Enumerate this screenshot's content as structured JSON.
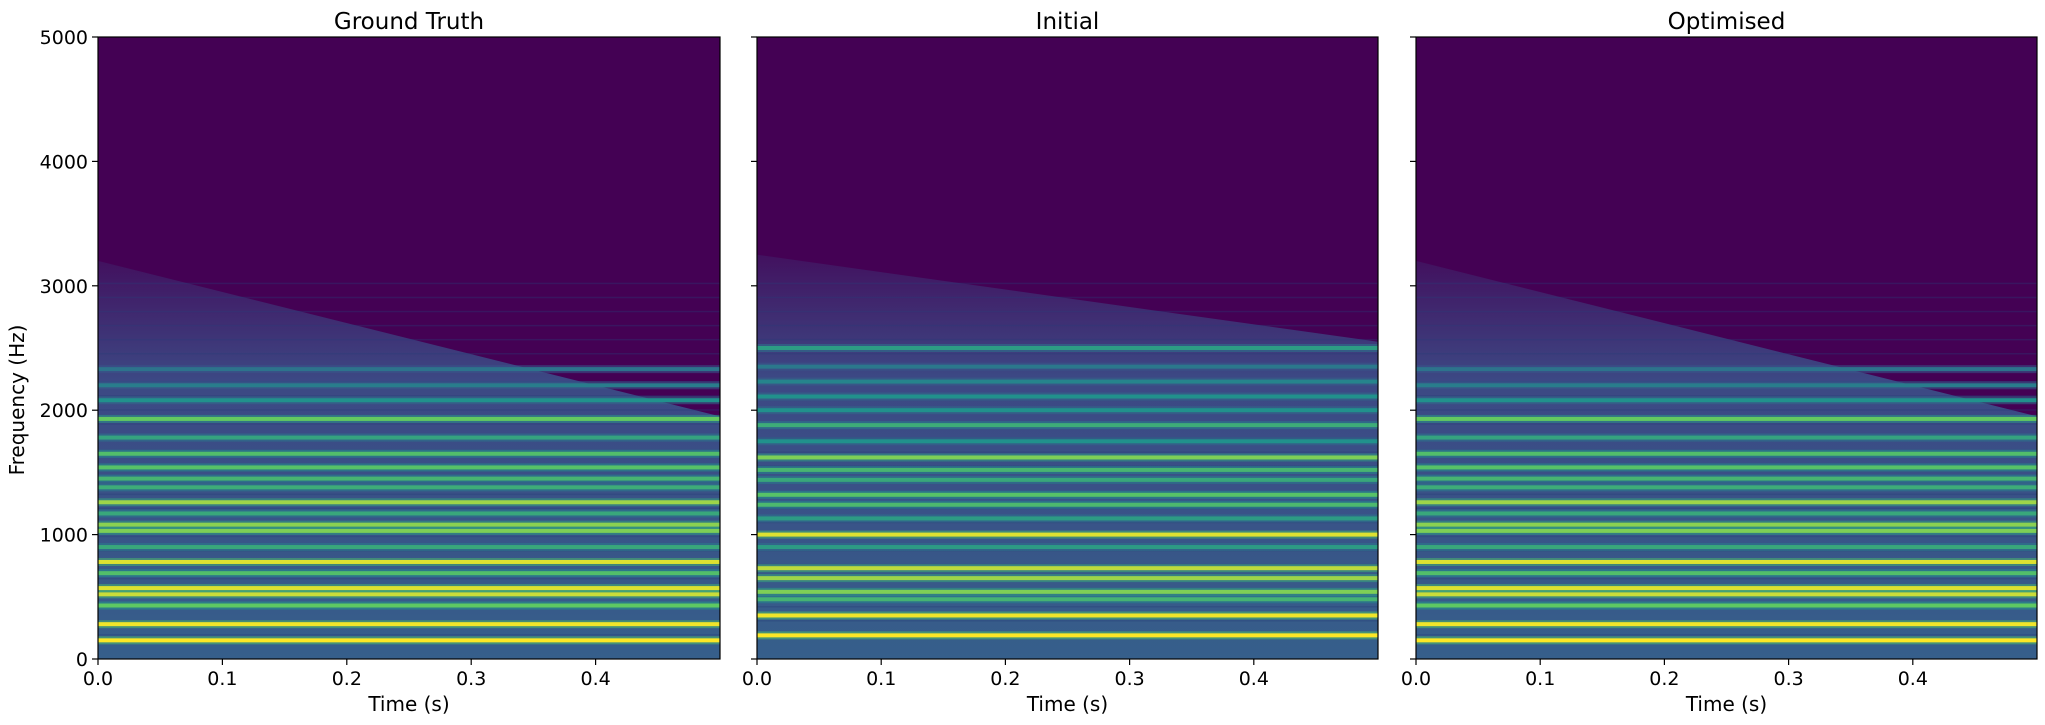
{
  "figure": {
    "shared_ylabel": "Frequency (Hz)"
  },
  "chart_data": [
    {
      "type": "heatmap",
      "title": "Ground Truth",
      "xlabel": "Time (s)",
      "ylabel": "Frequency (Hz)",
      "xlim": [
        0.0,
        0.5
      ],
      "ylim": [
        0,
        5000
      ],
      "x_ticks": [
        "0.0",
        "0.1",
        "0.2",
        "0.3",
        "0.4"
      ],
      "y_ticks": [
        "0",
        "1000",
        "2000",
        "3000",
        "4000",
        "5000"
      ],
      "colormap": "viridis",
      "background_color": "#440154",
      "noise_floor_start_hz": 3200,
      "noise_floor_end_hz": 1950,
      "harmonics": [
        {
          "freq": 150,
          "level": 1.0
        },
        {
          "freq": 280,
          "level": 0.98
        },
        {
          "freq": 430,
          "level": 0.75
        },
        {
          "freq": 520,
          "level": 0.92
        },
        {
          "freq": 570,
          "level": 0.95
        },
        {
          "freq": 690,
          "level": 0.7
        },
        {
          "freq": 780,
          "level": 0.95
        },
        {
          "freq": 900,
          "level": 0.6
        },
        {
          "freq": 1030,
          "level": 0.8
        },
        {
          "freq": 1080,
          "level": 0.82
        },
        {
          "freq": 1170,
          "level": 0.6
        },
        {
          "freq": 1260,
          "level": 0.85
        },
        {
          "freq": 1380,
          "level": 0.62
        },
        {
          "freq": 1450,
          "level": 0.66
        },
        {
          "freq": 1540,
          "level": 0.72
        },
        {
          "freq": 1650,
          "level": 0.7
        },
        {
          "freq": 1780,
          "level": 0.58
        },
        {
          "freq": 1930,
          "level": 0.76
        },
        {
          "freq": 2080,
          "level": 0.5
        },
        {
          "freq": 2200,
          "level": 0.42
        },
        {
          "freq": 2330,
          "level": 0.38
        }
      ]
    },
    {
      "type": "heatmap",
      "title": "Initial",
      "xlabel": "Time (s)",
      "ylabel": "",
      "xlim": [
        0.0,
        0.5
      ],
      "ylim": [
        0,
        5000
      ],
      "x_ticks": [
        "0.0",
        "0.1",
        "0.2",
        "0.3",
        "0.4"
      ],
      "y_ticks": [
        "0",
        "1000",
        "2000",
        "3000",
        "4000",
        "5000"
      ],
      "colormap": "viridis",
      "background_color": "#440154",
      "noise_floor_start_hz": 3250,
      "noise_floor_end_hz": 2550,
      "harmonics": [
        {
          "freq": 190,
          "level": 1.0
        },
        {
          "freq": 350,
          "level": 0.98
        },
        {
          "freq": 480,
          "level": 0.65
        },
        {
          "freq": 540,
          "level": 0.8
        },
        {
          "freq": 650,
          "level": 0.85
        },
        {
          "freq": 730,
          "level": 0.9
        },
        {
          "freq": 900,
          "level": 0.55
        },
        {
          "freq": 1000,
          "level": 0.95
        },
        {
          "freq": 1130,
          "level": 0.55
        },
        {
          "freq": 1240,
          "level": 0.68
        },
        {
          "freq": 1320,
          "level": 0.72
        },
        {
          "freq": 1440,
          "level": 0.6
        },
        {
          "freq": 1520,
          "level": 0.66
        },
        {
          "freq": 1620,
          "level": 0.8
        },
        {
          "freq": 1750,
          "level": 0.5
        },
        {
          "freq": 1880,
          "level": 0.62
        },
        {
          "freq": 2000,
          "level": 0.5
        },
        {
          "freq": 2110,
          "level": 0.5
        },
        {
          "freq": 2230,
          "level": 0.45
        },
        {
          "freq": 2350,
          "level": 0.4
        },
        {
          "freq": 2500,
          "level": 0.55
        }
      ]
    },
    {
      "type": "heatmap",
      "title": "Optimised",
      "xlabel": "Time (s)",
      "ylabel": "",
      "xlim": [
        0.0,
        0.5
      ],
      "ylim": [
        0,
        5000
      ],
      "x_ticks": [
        "0.0",
        "0.1",
        "0.2",
        "0.3",
        "0.4"
      ],
      "y_ticks": [
        "0",
        "1000",
        "2000",
        "3000",
        "4000",
        "5000"
      ],
      "colormap": "viridis",
      "background_color": "#440154",
      "noise_floor_start_hz": 3200,
      "noise_floor_end_hz": 1950,
      "harmonics": [
        {
          "freq": 150,
          "level": 1.0
        },
        {
          "freq": 280,
          "level": 0.98
        },
        {
          "freq": 430,
          "level": 0.75
        },
        {
          "freq": 520,
          "level": 0.92
        },
        {
          "freq": 570,
          "level": 0.95
        },
        {
          "freq": 690,
          "level": 0.7
        },
        {
          "freq": 780,
          "level": 0.95
        },
        {
          "freq": 900,
          "level": 0.6
        },
        {
          "freq": 1030,
          "level": 0.8
        },
        {
          "freq": 1080,
          "level": 0.82
        },
        {
          "freq": 1170,
          "level": 0.6
        },
        {
          "freq": 1260,
          "level": 0.85
        },
        {
          "freq": 1380,
          "level": 0.62
        },
        {
          "freq": 1450,
          "level": 0.66
        },
        {
          "freq": 1540,
          "level": 0.72
        },
        {
          "freq": 1650,
          "level": 0.7
        },
        {
          "freq": 1780,
          "level": 0.58
        },
        {
          "freq": 1930,
          "level": 0.76
        },
        {
          "freq": 2080,
          "level": 0.5
        },
        {
          "freq": 2200,
          "level": 0.42
        },
        {
          "freq": 2330,
          "level": 0.38
        }
      ]
    }
  ]
}
